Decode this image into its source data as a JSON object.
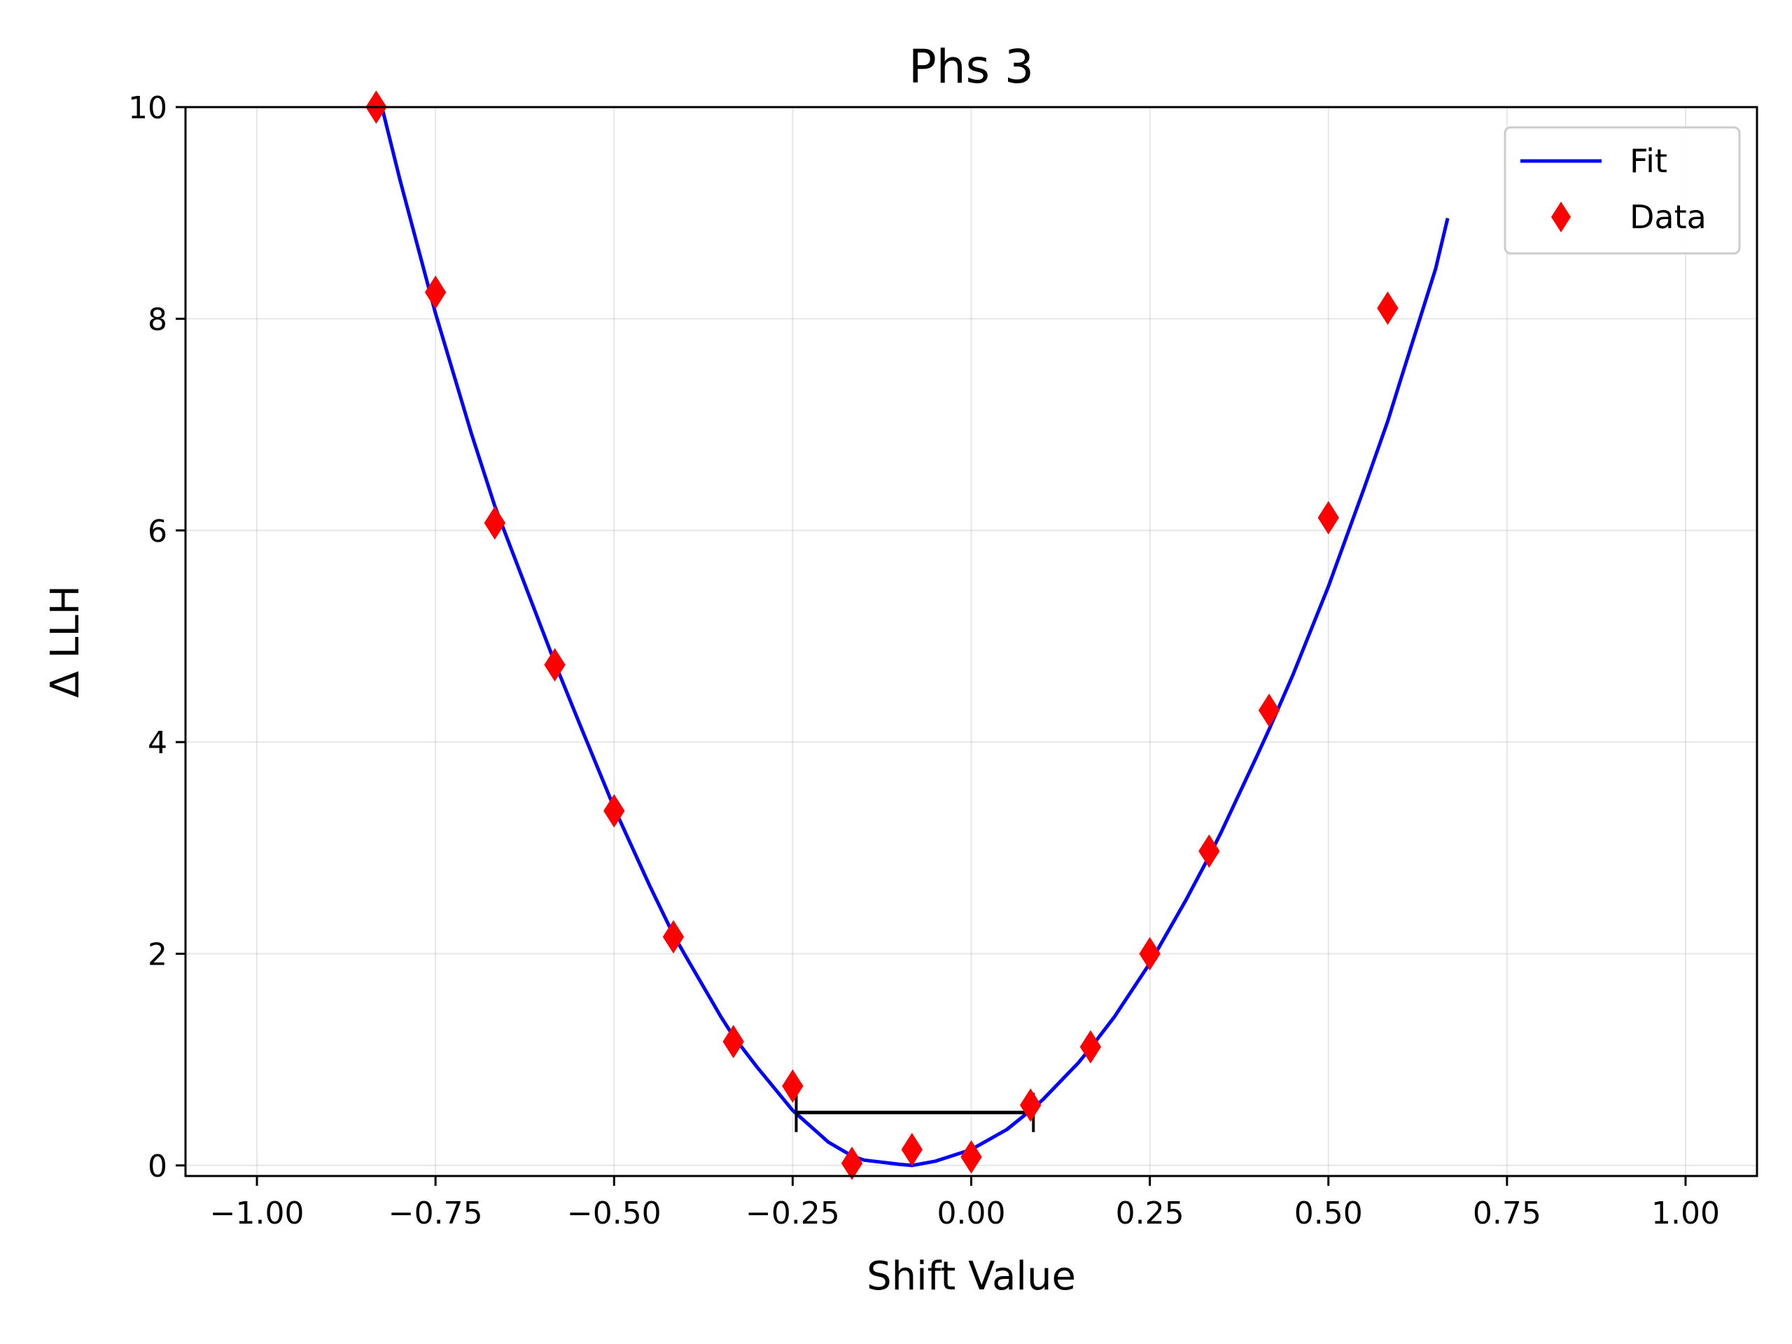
{
  "chart_data": {
    "type": "scatter",
    "title": "Phs 3",
    "xlabel": "Shift Value",
    "ylabel": "Δ LLH",
    "xlim": [
      -1.1,
      1.1
    ],
    "ylim": [
      -0.1,
      10.0
    ],
    "xticks": [
      -1.0,
      -0.75,
      -0.5,
      -0.25,
      0.0,
      0.25,
      0.5,
      0.75,
      1.0
    ],
    "xtick_labels": [
      "−1.00",
      "−0.75",
      "−0.50",
      "−0.25",
      "0.00",
      "0.25",
      "0.50",
      "0.75",
      "1.00"
    ],
    "yticks": [
      0,
      2,
      4,
      6,
      8,
      10
    ],
    "ytick_labels": [
      "0",
      "2",
      "4",
      "6",
      "8",
      "10"
    ],
    "grid": true,
    "legend_position": "top-right",
    "series": [
      {
        "name": "Fit",
        "kind": "line",
        "color": "#0000ff",
        "x": [
          -0.825,
          -0.8,
          -0.75,
          -0.7,
          -0.667,
          -0.6,
          -0.583,
          -0.55,
          -0.5,
          -0.45,
          -0.417,
          -0.4,
          -0.35,
          -0.333,
          -0.3,
          -0.25,
          -0.2,
          -0.167,
          -0.15,
          -0.1,
          -0.083,
          -0.05,
          0.0,
          0.05,
          0.083,
          0.1,
          0.15,
          0.167,
          0.2,
          0.25,
          0.3,
          0.333,
          0.35,
          0.4,
          0.417,
          0.45,
          0.5,
          0.55,
          0.583,
          0.6,
          0.65,
          0.667
        ],
        "y": [
          10.0,
          9.32,
          8.05,
          6.92,
          6.23,
          5.05,
          4.75,
          4.2,
          3.38,
          2.64,
          2.18,
          1.98,
          1.4,
          1.22,
          0.93,
          0.52,
          0.22,
          0.09,
          0.05,
          0.01,
          0.0,
          0.04,
          0.15,
          0.34,
          0.52,
          0.62,
          0.97,
          1.11,
          1.4,
          1.91,
          2.5,
          2.92,
          3.15,
          3.87,
          4.12,
          4.63,
          5.47,
          6.4,
          7.03,
          7.4,
          8.47,
          8.95
        ]
      },
      {
        "name": "Data",
        "kind": "scatter",
        "marker": "diamond",
        "color": "#ff0000",
        "x": [
          -0.833,
          -0.75,
          -0.667,
          -0.583,
          -0.5,
          -0.417,
          -0.333,
          -0.25,
          -0.167,
          -0.083,
          0.0,
          0.083,
          0.167,
          0.25,
          0.333,
          0.417,
          0.5,
          0.583
        ],
        "y": [
          10.05,
          8.25,
          6.07,
          4.73,
          3.35,
          2.16,
          1.17,
          0.75,
          0.02,
          0.15,
          0.08,
          0.57,
          1.12,
          2.0,
          2.97,
          4.3,
          6.12,
          8.1
        ]
      }
    ],
    "interval": {
      "x_start": -0.245,
      "x_end": 0.087,
      "y": 0.5,
      "color": "#000000"
    }
  }
}
